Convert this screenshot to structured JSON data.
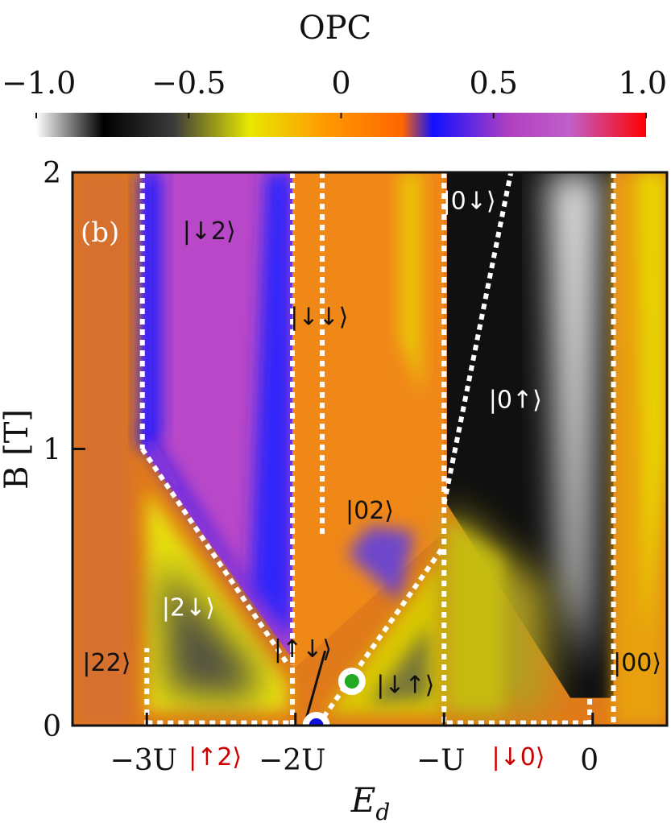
{
  "chart_data": {
    "type": "heatmap",
    "panel_label": "(b)",
    "colorbar": {
      "title": "OPC",
      "range": [
        -1.0,
        1.0
      ],
      "tick_values": [
        -1.0,
        -0.5,
        0,
        0.5,
        1.0
      ],
      "tick_labels": [
        "−1.0",
        "−0.5",
        "0",
        "0.5",
        "1.0"
      ],
      "gradient_stops": [
        {
          "value": -1.0,
          "color": "#ffffff"
        },
        {
          "value": -0.78,
          "color": "#000000"
        },
        {
          "value": -0.55,
          "color": "#3a3a3a"
        },
        {
          "value": -0.3,
          "color": "#e8e800"
        },
        {
          "value": -0.05,
          "color": "#ff9900"
        },
        {
          "value": 0.2,
          "color": "#ff6600"
        },
        {
          "value": 0.3,
          "color": "#1010ff"
        },
        {
          "value": 0.55,
          "color": "#b040c0"
        },
        {
          "value": 0.75,
          "color": "#c060c8"
        },
        {
          "value": 1.0,
          "color": "#ff0000"
        }
      ]
    },
    "xlabel": "E_d",
    "xlabel_main": "E",
    "xlabel_sub": "d",
    "ylabel": "B [T]",
    "xlim": [
      -3.5,
      0.5
    ],
    "ylim": [
      0,
      2
    ],
    "x_ticks": [
      {
        "value": -3,
        "label": "−3U"
      },
      {
        "value": -2,
        "label": "−2U"
      },
      {
        "value": -1,
        "label": "−U"
      },
      {
        "value": 0,
        "label": "0"
      }
    ],
    "y_ticks": [
      {
        "value": 0,
        "label": "0"
      },
      {
        "value": 1,
        "label": "1"
      },
      {
        "value": 2,
        "label": "2"
      }
    ],
    "boundaries": [
      {
        "points": [
          [
            -3.03,
            2.0
          ],
          [
            -3.03,
            1.0
          ]
        ]
      },
      {
        "points": [
          [
            -3.03,
            1.0
          ],
          [
            -2.05,
            0.22
          ]
        ]
      },
      {
        "points": [
          [
            -2.02,
            2.0
          ],
          [
            -2.02,
            0.22
          ]
        ]
      },
      {
        "points": [
          [
            -1.82,
            2.0
          ],
          [
            -1.82,
            0.68
          ]
        ]
      },
      {
        "points": [
          [
            -1.0,
            2.0
          ],
          [
            -1.0,
            0.0
          ]
        ]
      },
      {
        "points": [
          [
            -1.0,
            0.8
          ],
          [
            -0.55,
            2.0
          ]
        ]
      },
      {
        "points": [
          [
            0.14,
            2.0
          ],
          [
            0.14,
            0.0
          ]
        ]
      },
      {
        "points": [
          [
            -1.85,
            0.0
          ],
          [
            -1.0,
            0.65
          ]
        ]
      },
      {
        "points": [
          [
            -3.0,
            0.0
          ],
          [
            -3.0,
            0.28
          ]
        ]
      },
      {
        "points": [
          [
            -2.02,
            0.0
          ],
          [
            -2.02,
            0.28
          ]
        ]
      },
      {
        "points": [
          [
            -3.0,
            0.01
          ],
          [
            -2.04,
            0.01
          ]
        ]
      },
      {
        "points": [
          [
            -0.98,
            0.01
          ],
          [
            0.0,
            0.01
          ]
        ]
      },
      {
        "points": [
          [
            -0.02,
            0.0
          ],
          [
            -0.02,
            0.1
          ]
        ]
      }
    ],
    "state_labels": [
      {
        "text": "|↓2⟩",
        "x": -2.58,
        "y": 1.79,
        "color": "#111111"
      },
      {
        "text": "|↓↓⟩",
        "x": -1.84,
        "y": 1.48,
        "color": "#111111"
      },
      {
        "text": "|0↓⟩",
        "x": -0.83,
        "y": 1.9,
        "color": "#ffffff"
      },
      {
        "text": "|0↑⟩",
        "x": -0.52,
        "y": 1.18,
        "color": "#ffffff"
      },
      {
        "text": "|02⟩",
        "x": -1.5,
        "y": 0.78,
        "color": "#111111"
      },
      {
        "text": "|2↓⟩",
        "x": -2.72,
        "y": 0.43,
        "color": "#ffffff"
      },
      {
        "text": "|↑↓⟩",
        "x": -1.95,
        "y": 0.28,
        "color": "#111111"
      },
      {
        "text": "|↓↑⟩",
        "x": -1.26,
        "y": 0.15,
        "color": "#111111"
      },
      {
        "text": "|22⟩",
        "x": -3.27,
        "y": 0.23,
        "color": "#111111"
      },
      {
        "text": "|00⟩",
        "x": 0.3,
        "y": 0.23,
        "color": "#111111"
      },
      {
        "text": "|↑2⟩",
        "x": -2.54,
        "y": -0.11,
        "color": "#cc0000"
      },
      {
        "text": "|↓0⟩",
        "x": -0.5,
        "y": -0.11,
        "color": "#cc0000"
      }
    ],
    "markers": [
      {
        "x": -1.62,
        "y": 0.16,
        "color": "#22aa22"
      },
      {
        "x": -1.86,
        "y": 0.0,
        "color": "#1010dd"
      }
    ],
    "pointer_line": {
      "points": [
        [
          -1.93,
          0.02
        ],
        [
          -1.8,
          0.27
        ]
      ]
    }
  }
}
